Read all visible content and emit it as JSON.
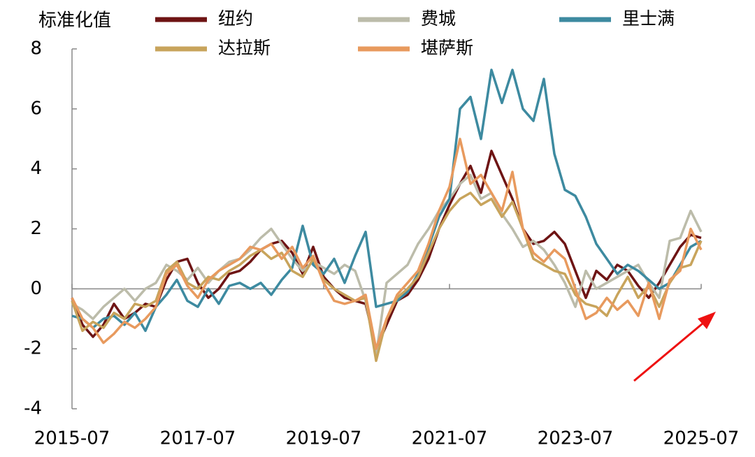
{
  "chart_data": {
    "type": "line",
    "y_label": "标准化值",
    "x": [
      "2015-07",
      "2015-09",
      "2015-11",
      "2016-01",
      "2016-03",
      "2016-05",
      "2016-07",
      "2016-09",
      "2016-11",
      "2017-01",
      "2017-03",
      "2017-05",
      "2017-07",
      "2017-09",
      "2017-11",
      "2018-01",
      "2018-03",
      "2018-05",
      "2018-07",
      "2018-09",
      "2018-11",
      "2019-01",
      "2019-03",
      "2019-05",
      "2019-07",
      "2019-09",
      "2019-11",
      "2020-01",
      "2020-03",
      "2020-05",
      "2020-07",
      "2020-09",
      "2020-11",
      "2021-01",
      "2021-03",
      "2021-05",
      "2021-07",
      "2021-09",
      "2021-11",
      "2022-01",
      "2022-03",
      "2022-05",
      "2022-07",
      "2022-09",
      "2022-11",
      "2023-01",
      "2023-03",
      "2023-05",
      "2023-07",
      "2023-09",
      "2023-11",
      "2024-01",
      "2024-03",
      "2024-05",
      "2024-07",
      "2024-09",
      "2024-11",
      "2025-01",
      "2025-03",
      "2025-05",
      "2025-07"
    ],
    "series": [
      {
        "name": "纽约",
        "color": "#6e1414",
        "values": [
          -0.3,
          -1.2,
          -1.6,
          -1.2,
          -0.5,
          -1.0,
          -0.8,
          -0.5,
          -0.6,
          0.3,
          0.9,
          1.0,
          0.2,
          -0.3,
          0.0,
          0.5,
          0.6,
          0.9,
          1.3,
          1.5,
          1.6,
          1.2,
          0.5,
          1.4,
          0.4,
          0.0,
          -0.3,
          -0.4,
          -0.5,
          -2.0,
          -1.2,
          -0.4,
          -0.2,
          0.3,
          1.0,
          2.0,
          2.8,
          3.5,
          4.1,
          3.2,
          4.6,
          3.8,
          3.0,
          2.0,
          1.5,
          1.6,
          1.9,
          1.5,
          0.6,
          -0.3,
          0.6,
          0.3,
          0.8,
          0.6,
          0.1,
          -0.3,
          0.2,
          0.8,
          1.4,
          1.8,
          1.7
        ]
      },
      {
        "name": "费城",
        "color": "#bcbcaa",
        "values": [
          -0.5,
          -0.7,
          -1.0,
          -0.6,
          -0.3,
          0.0,
          -0.4,
          0.0,
          0.2,
          0.8,
          0.6,
          0.3,
          0.7,
          0.2,
          0.6,
          0.9,
          1.0,
          1.3,
          1.7,
          2.0,
          1.5,
          1.0,
          0.6,
          0.9,
          0.7,
          0.5,
          0.8,
          0.6,
          -0.4,
          -2.2,
          0.2,
          0.5,
          0.8,
          1.5,
          2.0,
          2.6,
          3.0,
          3.5,
          3.8,
          3.0,
          3.2,
          2.5,
          2.0,
          1.4,
          1.6,
          1.3,
          0.8,
          0.2,
          -0.6,
          0.6,
          0.0,
          0.2,
          0.4,
          0.6,
          0.8,
          0.2,
          -0.3,
          1.6,
          1.7,
          2.6,
          1.9
        ]
      },
      {
        "name": "里士满",
        "color": "#3d8aa0",
        "values": [
          -0.9,
          -1.0,
          -1.3,
          -1.0,
          -0.9,
          -1.2,
          -0.8,
          -1.4,
          -0.6,
          -0.2,
          0.3,
          -0.4,
          -0.6,
          0.0,
          -0.5,
          0.1,
          0.2,
          0.0,
          0.2,
          -0.2,
          0.3,
          0.7,
          2.1,
          0.8,
          0.5,
          1.0,
          0.2,
          1.1,
          1.9,
          -0.6,
          -0.5,
          -0.4,
          -0.1,
          0.5,
          1.4,
          2.4,
          3.0,
          6.0,
          6.4,
          5.0,
          7.3,
          6.2,
          7.3,
          6.0,
          5.6,
          7.0,
          4.5,
          3.3,
          3.1,
          2.4,
          1.5,
          1.0,
          0.5,
          0.8,
          0.6,
          0.3,
          0.0,
          0.2,
          0.8,
          1.4,
          1.6
        ]
      },
      {
        "name": "达拉斯",
        "color": "#c8a45c",
        "values": [
          -0.4,
          -1.4,
          -1.1,
          -1.3,
          -0.8,
          -1.0,
          -0.5,
          -0.6,
          -0.4,
          0.6,
          0.9,
          0.2,
          0.0,
          0.4,
          0.3,
          0.6,
          0.8,
          1.1,
          1.3,
          1.0,
          1.2,
          0.6,
          0.4,
          1.0,
          0.3,
          0.0,
          -0.2,
          -0.4,
          -0.3,
          -2.4,
          -1.0,
          -0.3,
          0.0,
          0.4,
          1.2,
          2.0,
          2.6,
          3.0,
          3.2,
          2.8,
          3.0,
          2.4,
          2.9,
          2.0,
          1.0,
          0.8,
          0.6,
          0.5,
          -0.2,
          -0.5,
          -0.6,
          -0.9,
          -0.2,
          0.4,
          -0.3,
          0.1,
          -0.6,
          0.2,
          0.7,
          0.8,
          1.6
        ]
      },
      {
        "name": "堪萨斯",
        "color": "#e89a5e",
        "values": [
          -0.3,
          -1.0,
          -1.3,
          -1.8,
          -1.5,
          -1.1,
          -1.3,
          -1.0,
          -0.6,
          0.5,
          0.8,
          0.1,
          -0.3,
          0.3,
          0.6,
          0.8,
          1.0,
          1.4,
          1.3,
          1.5,
          1.0,
          1.4,
          0.7,
          1.1,
          0.2,
          -0.4,
          -0.5,
          -0.4,
          -0.2,
          -2.0,
          -1.0,
          -0.2,
          0.2,
          0.6,
          1.5,
          2.6,
          3.4,
          5.0,
          3.5,
          3.8,
          3.2,
          2.6,
          3.9,
          2.0,
          1.2,
          0.9,
          1.3,
          1.0,
          0.0,
          -1.0,
          -0.8,
          -0.3,
          -0.7,
          -0.4,
          -0.9,
          0.2,
          -1.0,
          0.3,
          0.6,
          2.0,
          1.3
        ]
      }
    ],
    "xlim": [
      "2015-07",
      "2025-07"
    ],
    "xticks": [
      "2015-07",
      "2017-07",
      "2019-07",
      "2021-07",
      "2023-07",
      "2025-07"
    ],
    "ylim": [
      -4,
      8
    ],
    "yticks": [
      -4,
      -2,
      0,
      2,
      4,
      6,
      8
    ],
    "grid": false
  }
}
